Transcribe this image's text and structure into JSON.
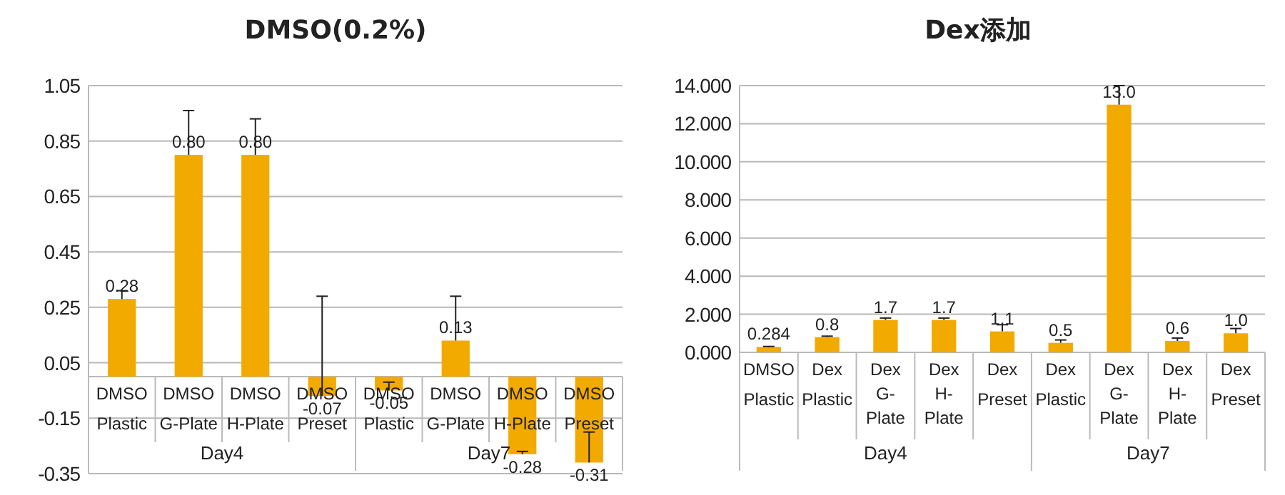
{
  "chart_data": [
    {
      "type": "bar",
      "title": "DMSO(0.2%)",
      "categories": [
        "DMSO Plastic",
        "DMSO G-Plate",
        "DMSO H-Plate",
        "DMSO Preset",
        "DMSO Plastic",
        "DMSO G-Plate",
        "DMSO H-Plate",
        "DMSO Preset"
      ],
      "values": [
        0.28,
        0.8,
        0.8,
        -0.07,
        -0.05,
        0.13,
        -0.28,
        -0.31
      ],
      "value_labels": [
        "0.28",
        "0.80",
        "0.80",
        "-0.07",
        "-0.05",
        "0.13",
        "-0.28",
        "-0.31"
      ],
      "errors": [
        [
          0.28,
          0.31
        ],
        [
          0.8,
          0.96
        ],
        [
          0.8,
          0.93
        ],
        [
          -0.07,
          0.29
        ],
        [
          -0.05,
          -0.02
        ],
        [
          0.13,
          0.29
        ],
        [
          -0.28,
          -0.27
        ],
        [
          -0.31,
          -0.2
        ]
      ],
      "color": "#f2aa00",
      "ylim": [
        -0.35,
        1.05
      ],
      "yticks": [
        -0.35,
        -0.15,
        0.05,
        0.25,
        0.45,
        0.65,
        0.85,
        1.05
      ],
      "grid": "y",
      "annotations": [
        "Day4",
        "Day7"
      ]
    },
    {
      "type": "bar",
      "title": "Dex添加",
      "categories": [
        "DMSO Plastic",
        "Dex Plastic",
        "Dex G-Plate",
        "Dex H-Plate",
        "Dex Preset",
        "Dex Plastic",
        "Dex G-Plate",
        "Dex H-Plate",
        "Dex Preset"
      ],
      "values": [
        0.284,
        0.8,
        1.7,
        1.7,
        1.1,
        0.5,
        13.0,
        0.6,
        1.0
      ],
      "value_labels": [
        "0.284",
        "0.8",
        "1.7",
        "1.7",
        "1.1",
        "0.5",
        "13.0",
        "0.6",
        "1.0"
      ],
      "errors": [
        [
          0.284,
          0.31
        ],
        [
          0.8,
          0.85
        ],
        [
          1.7,
          1.8
        ],
        [
          1.7,
          1.8
        ],
        [
          1.1,
          1.45
        ],
        [
          0.5,
          0.65
        ],
        [
          13.0,
          14.0
        ],
        [
          0.6,
          0.75
        ],
        [
          1.0,
          1.25
        ]
      ],
      "color": "#f2aa00",
      "ylim": [
        0,
        14
      ],
      "yticks": [
        {
          "value": 0,
          "label": "0.000"
        },
        {
          "value": 2,
          "label": "2.000"
        },
        {
          "value": 4,
          "label": "4.000"
        },
        {
          "value": 6,
          "label": "6.000"
        },
        {
          "value": 8,
          "label": "8.000"
        },
        {
          "value": 10,
          "label": "10.000"
        },
        {
          "value": 12,
          "label": "12.000"
        },
        {
          "value": 14,
          "label": "14.000"
        }
      ],
      "grid": "y",
      "annotations": [
        "Day4",
        "Day7"
      ]
    }
  ]
}
